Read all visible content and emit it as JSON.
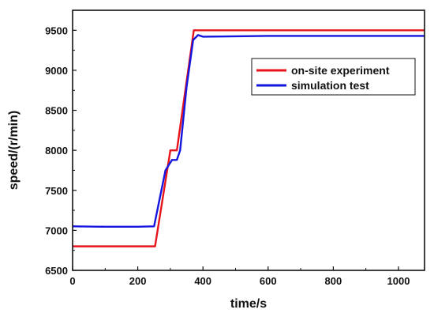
{
  "chart_data": {
    "type": "line",
    "title": "",
    "xlabel": "time/s",
    "ylabel": "speed/(r/min)",
    "xlim": [
      0,
      1080
    ],
    "ylim": [
      6500,
      9750
    ],
    "x_ticks": [
      0,
      200,
      400,
      600,
      800,
      1000
    ],
    "y_ticks": [
      6500,
      7000,
      7500,
      8000,
      8500,
      9000,
      9500
    ],
    "grid": false,
    "legend_position": "top-right",
    "series": [
      {
        "name": "on-site experiment",
        "color": "#e8141b",
        "points": [
          [
            0,
            6800
          ],
          [
            100,
            6800
          ],
          [
            200,
            6800
          ],
          [
            253,
            6800
          ],
          [
            300,
            8000
          ],
          [
            320,
            8000
          ],
          [
            372,
            9500
          ],
          [
            500,
            9500
          ],
          [
            700,
            9500
          ],
          [
            900,
            9500
          ],
          [
            1080,
            9500
          ]
        ]
      },
      {
        "name": "simulation test",
        "color": "#1515e0",
        "points": [
          [
            0,
            7050
          ],
          [
            100,
            7045
          ],
          [
            200,
            7045
          ],
          [
            250,
            7050
          ],
          [
            285,
            7750
          ],
          [
            305,
            7880
          ],
          [
            320,
            7880
          ],
          [
            330,
            8000
          ],
          [
            350,
            8800
          ],
          [
            370,
            9380
          ],
          [
            385,
            9440
          ],
          [
            400,
            9420
          ],
          [
            500,
            9425
          ],
          [
            600,
            9430
          ],
          [
            700,
            9430
          ],
          [
            800,
            9430
          ],
          [
            900,
            9430
          ],
          [
            1000,
            9430
          ],
          [
            1080,
            9430
          ]
        ]
      }
    ]
  }
}
